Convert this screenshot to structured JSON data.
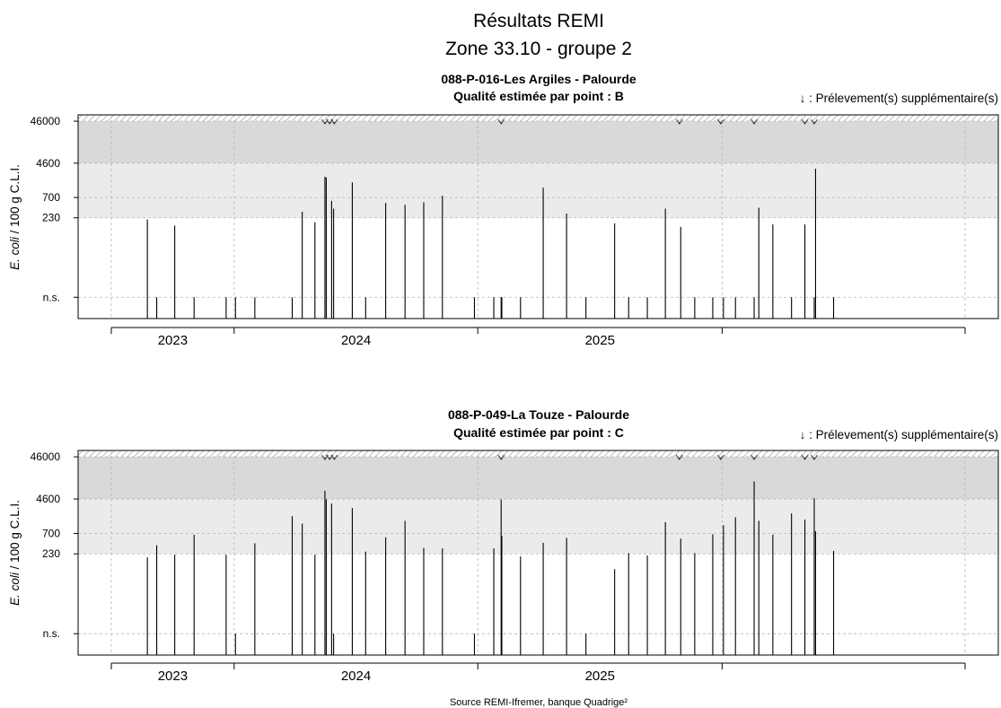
{
  "title": "Résultats REMI",
  "subtitle": "Zone 33.10 - groupe 2",
  "source": "Source REMI-Ifremer, banque Quadrige²",
  "note": "↓ : Prélevement(s) supplémentaire(s)",
  "ylabel_italic": "E. coli",
  "ylabel_rest": " / 100 g C.L.I.",
  "colors": {
    "band_high": "#d9d9d9",
    "band_mid": "#ebebeb",
    "hatch": "#9a9a9a",
    "bar": "#000000",
    "grid": "#b5b5b5"
  },
  "chart_data": [
    {
      "type": "bar",
      "title": "088-P-016-Les Argiles - Palourde",
      "quality": "Qualité estimée par point : B",
      "ylabel": "E. coli / 100 g C.L.I.",
      "y_scale": "log",
      "y_tick_labels": [
        "n.s.",
        "230",
        "700",
        "4600",
        "46000"
      ],
      "bands": {
        "white_max": 230,
        "light_grey_max": 4600,
        "dark_grey_max": 46000,
        "hatched_above": 46000
      },
      "x_tick_labels": [
        "2023",
        "2024",
        "2025"
      ],
      "x_range": [
        "2022-07-01",
        "2025-12-31"
      ],
      "grid": true,
      "supplementary_samples": [
        "2023-05-17",
        "2023-05-24",
        "2023-05-31",
        "2024-02-05",
        "2024-10-29",
        "2024-12-30",
        "2025-02-18",
        "2025-05-05",
        "2025-05-19"
      ],
      "values": [
        {
          "date": "2022-08-24",
          "value": 210
        },
        {
          "date": "2022-09-07",
          "value": "n.s."
        },
        {
          "date": "2022-10-04",
          "value": 150
        },
        {
          "date": "2022-11-02",
          "value": "n.s."
        },
        {
          "date": "2022-12-20",
          "value": "n.s."
        },
        {
          "date": "2023-01-03",
          "value": "n.s."
        },
        {
          "date": "2023-02-01",
          "value": "n.s."
        },
        {
          "date": "2023-03-29",
          "value": "n.s."
        },
        {
          "date": "2023-04-13",
          "value": 320
        },
        {
          "date": "2023-05-02",
          "value": 180
        },
        {
          "date": "2023-05-17",
          "value": 2200
        },
        {
          "date": "2023-05-19",
          "value": 2100
        },
        {
          "date": "2023-05-27",
          "value": 580
        },
        {
          "date": "2023-05-30",
          "value": 380
        },
        {
          "date": "2023-06-27",
          "value": 1600
        },
        {
          "date": "2023-07-17",
          "value": "n.s."
        },
        {
          "date": "2023-08-16",
          "value": 520
        },
        {
          "date": "2023-09-14",
          "value": 470
        },
        {
          "date": "2023-10-12",
          "value": 540
        },
        {
          "date": "2023-11-09",
          "value": 770
        },
        {
          "date": "2023-12-27",
          "value": "n.s."
        },
        {
          "date": "2024-01-25",
          "value": "n.s."
        },
        {
          "date": "2024-02-05",
          "value": "n.s."
        },
        {
          "date": "2024-02-06",
          "value": "n.s."
        },
        {
          "date": "2024-03-05",
          "value": "n.s."
        },
        {
          "date": "2024-04-08",
          "value": 1200
        },
        {
          "date": "2024-05-13",
          "value": 290
        },
        {
          "date": "2024-06-11",
          "value": "n.s."
        },
        {
          "date": "2024-07-24",
          "value": 170
        },
        {
          "date": "2024-08-14",
          "value": "n.s."
        },
        {
          "date": "2024-09-11",
          "value": "n.s."
        },
        {
          "date": "2024-10-08",
          "value": 380
        },
        {
          "date": "2024-10-31",
          "value": 140
        },
        {
          "date": "2024-11-21",
          "value": "n.s."
        },
        {
          "date": "2024-12-18",
          "value": "n.s."
        },
        {
          "date": "2025-01-03",
          "value": "n.s."
        },
        {
          "date": "2025-01-21",
          "value": "n.s."
        },
        {
          "date": "2025-02-18",
          "value": "n.s."
        },
        {
          "date": "2025-02-25",
          "value": 400
        },
        {
          "date": "2025-03-18",
          "value": 160
        },
        {
          "date": "2025-04-15",
          "value": "n.s."
        },
        {
          "date": "2025-05-05",
          "value": 160
        },
        {
          "date": "2025-05-19",
          "value": "n.s."
        },
        {
          "date": "2025-05-21",
          "value": 3400
        },
        {
          "date": "2025-06-17",
          "value": "n.s."
        }
      ]
    },
    {
      "type": "bar",
      "title": "088-P-049-La Touze - Palourde",
      "quality": "Qualité estimée par point : C",
      "ylabel": "E. coli / 100 g C.L.I.",
      "y_scale": "log",
      "y_tick_labels": [
        "n.s.",
        "230",
        "700",
        "4600",
        "46000"
      ],
      "bands": {
        "white_max": 230,
        "light_grey_max": 4600,
        "dark_grey_max": 46000,
        "hatched_above": 46000
      },
      "x_tick_labels": [
        "2023",
        "2024",
        "2025"
      ],
      "x_range": [
        "2022-07-01",
        "2025-12-31"
      ],
      "grid": true,
      "supplementary_samples": [
        "2023-05-17",
        "2023-05-24",
        "2023-05-31",
        "2024-02-05",
        "2024-10-29",
        "2024-12-30",
        "2025-02-18",
        "2025-05-05",
        "2025-05-19"
      ],
      "values": [
        {
          "date": "2022-08-24",
          "value": 190
        },
        {
          "date": "2022-09-07",
          "value": 370
        },
        {
          "date": "2022-10-04",
          "value": 220
        },
        {
          "date": "2022-11-02",
          "value": 650
        },
        {
          "date": "2022-12-20",
          "value": 220
        },
        {
          "date": "2023-01-03",
          "value": "n.s."
        },
        {
          "date": "2023-02-01",
          "value": 410
        },
        {
          "date": "2023-03-29",
          "value": 1800
        },
        {
          "date": "2023-04-13",
          "value": 1200
        },
        {
          "date": "2023-05-02",
          "value": 220
        },
        {
          "date": "2023-05-17",
          "value": 7200
        },
        {
          "date": "2023-05-19",
          "value": 4500
        },
        {
          "date": "2023-05-27",
          "value": 3600
        },
        {
          "date": "2023-05-30",
          "value": "n.s."
        },
        {
          "date": "2023-06-27",
          "value": 2800
        },
        {
          "date": "2023-07-17",
          "value": 260
        },
        {
          "date": "2023-08-16",
          "value": 570
        },
        {
          "date": "2023-09-14",
          "value": 1400
        },
        {
          "date": "2023-10-12",
          "value": 320
        },
        {
          "date": "2023-11-09",
          "value": 310
        },
        {
          "date": "2023-12-27",
          "value": "n.s."
        },
        {
          "date": "2024-01-25",
          "value": 310
        },
        {
          "date": "2024-02-05",
          "value": 4500
        },
        {
          "date": "2024-02-06",
          "value": 610
        },
        {
          "date": "2024-03-05",
          "value": 200
        },
        {
          "date": "2024-04-08",
          "value": 420
        },
        {
          "date": "2024-05-13",
          "value": 550
        },
        {
          "date": "2024-06-11",
          "value": "n.s."
        },
        {
          "date": "2024-07-24",
          "value": 100
        },
        {
          "date": "2024-08-14",
          "value": 240
        },
        {
          "date": "2024-09-11",
          "value": 210
        },
        {
          "date": "2024-10-08",
          "value": 1300
        },
        {
          "date": "2024-10-31",
          "value": 530
        },
        {
          "date": "2024-11-21",
          "value": 240
        },
        {
          "date": "2024-12-18",
          "value": 670
        },
        {
          "date": "2025-01-03",
          "value": 1100
        },
        {
          "date": "2025-01-21",
          "value": 1700
        },
        {
          "date": "2025-02-18",
          "value": 12000
        },
        {
          "date": "2025-02-25",
          "value": 1400
        },
        {
          "date": "2025-03-18",
          "value": 660
        },
        {
          "date": "2025-04-15",
          "value": 2100
        },
        {
          "date": "2025-05-05",
          "value": 1500
        },
        {
          "date": "2025-05-19",
          "value": 4800
        },
        {
          "date": "2025-05-21",
          "value": 790
        },
        {
          "date": "2025-06-17",
          "value": 270
        }
      ]
    }
  ]
}
